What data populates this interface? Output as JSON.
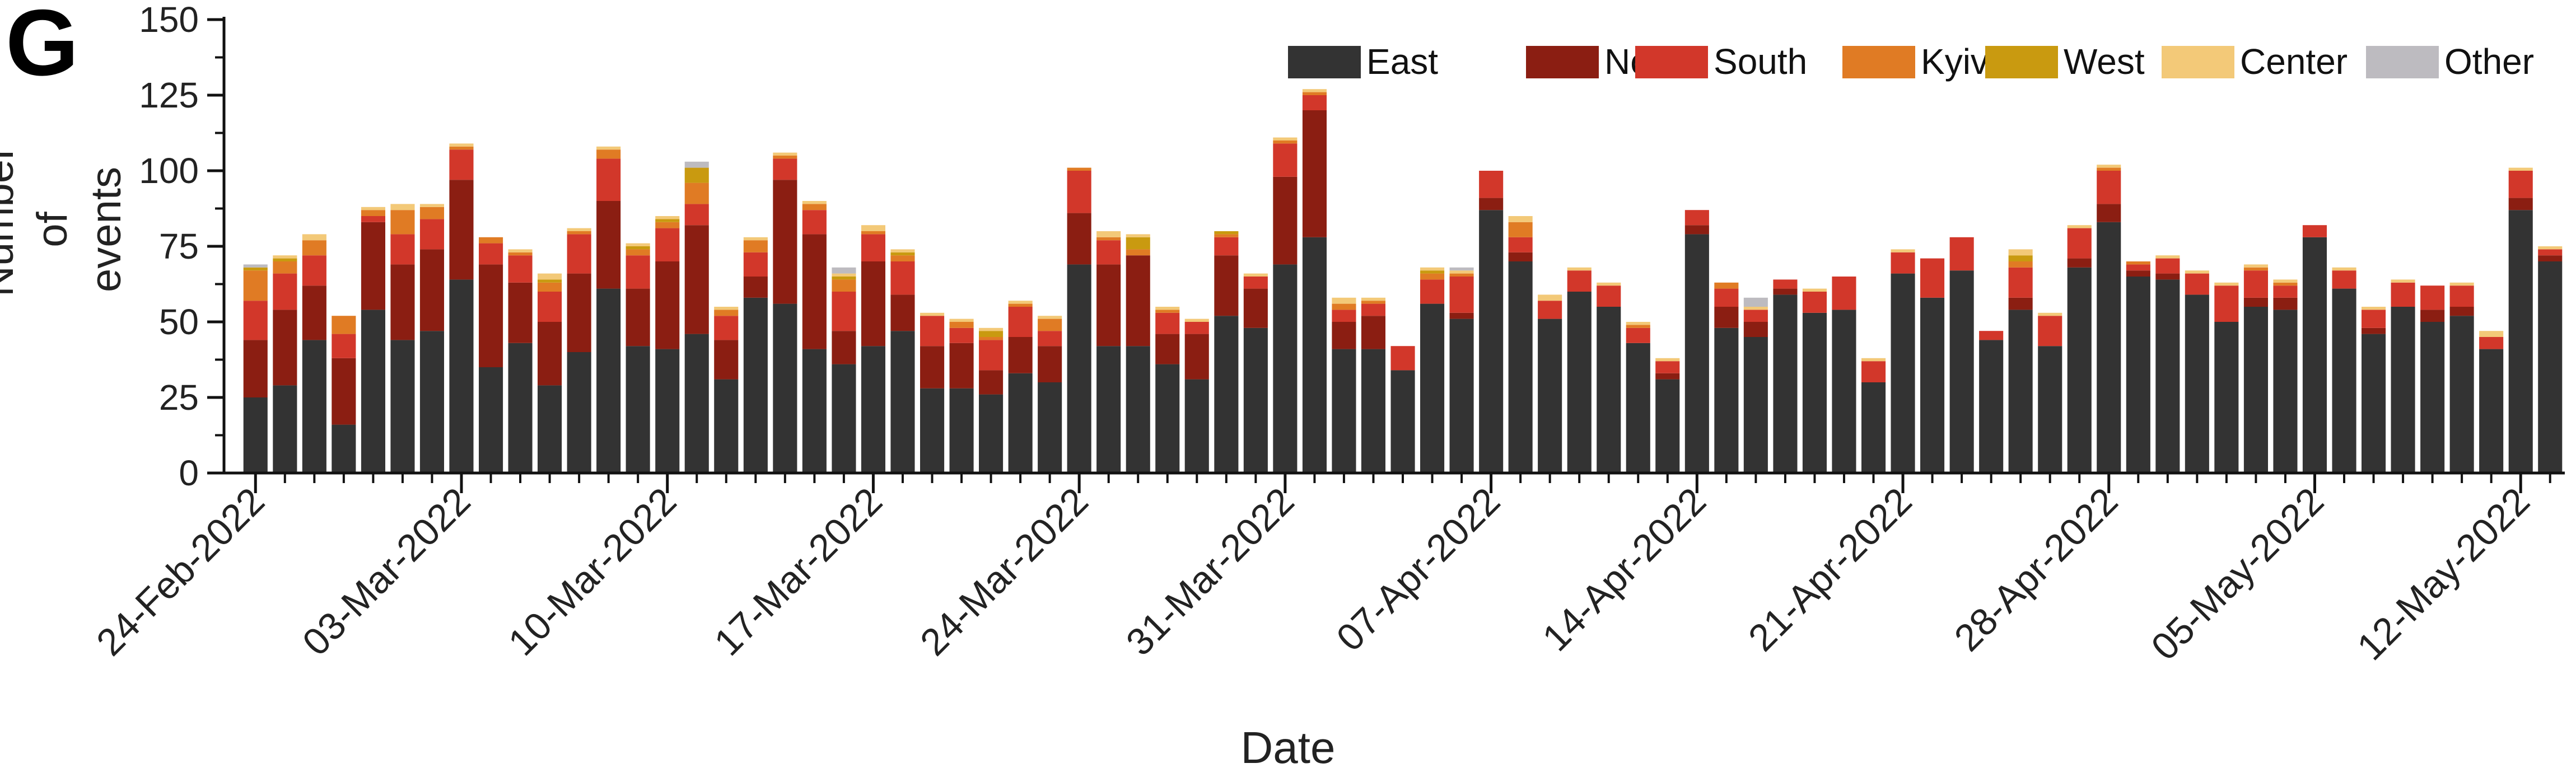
{
  "panel_label": "G",
  "chart_data": {
    "type": "bar",
    "stacked": true,
    "xlabel": "Date",
    "ylabel_lines": [
      "Number of",
      "events"
    ],
    "ylim": [
      0,
      150
    ],
    "yticks": [
      0,
      25,
      50,
      75,
      100,
      125,
      150
    ],
    "grid": false,
    "legend_placement": "top-right",
    "x_tick_labels": [
      "24-Feb-2022",
      "03-Mar-2022",
      "10-Mar-2022",
      "17-Mar-2022",
      "24-Mar-2022",
      "31-Mar-2022",
      "07-Apr-2022",
      "14-Apr-2022",
      "21-Apr-2022",
      "28-Apr-2022",
      "05-May-2022",
      "12-May-2022"
    ],
    "x_tick_every": 7,
    "series": [
      {
        "name": "East",
        "color": "#333333",
        "values": [
          25,
          29,
          44,
          16,
          54,
          44,
          47,
          64,
          35,
          43,
          29,
          40,
          61,
          42,
          41,
          46,
          31,
          58,
          56,
          41,
          36,
          42,
          47,
          28,
          28,
          26,
          33,
          30,
          69,
          42,
          42,
          36,
          31,
          52,
          48,
          69,
          78,
          41,
          41,
          34,
          56,
          51,
          87,
          70,
          51,
          60,
          55,
          43,
          31,
          79,
          48,
          45,
          59,
          53,
          54,
          30,
          66,
          58,
          67,
          44,
          54,
          42,
          68,
          83,
          65,
          64,
          59,
          50,
          55,
          54,
          78,
          61,
          46,
          55,
          50,
          52,
          41,
          87,
          70
        ]
      },
      {
        "name": "North",
        "color": "#8B1E12",
        "values": [
          19,
          25,
          18,
          22,
          29,
          25,
          27,
          33,
          34,
          20,
          21,
          26,
          29,
          19,
          29,
          36,
          13,
          7,
          41,
          38,
          11,
          28,
          12,
          14,
          15,
          8,
          12,
          12,
          17,
          27,
          30,
          10,
          15,
          20,
          13,
          29,
          42,
          9,
          11,
          0,
          0,
          2,
          4,
          3,
          0,
          0,
          0,
          0,
          2,
          3,
          7,
          5,
          2,
          0,
          0,
          0,
          0,
          0,
          0,
          0,
          4,
          0,
          3,
          6,
          2,
          2,
          0,
          0,
          3,
          4,
          0,
          0,
          2,
          0,
          4,
          3,
          0,
          4,
          2
        ]
      },
      {
        "name": "South",
        "color": "#D2372A",
        "values": [
          13,
          12,
          10,
          8,
          2,
          10,
          10,
          10,
          7,
          9,
          10,
          13,
          14,
          11,
          11,
          7,
          8,
          8,
          7,
          8,
          13,
          9,
          11,
          10,
          5,
          10,
          10,
          5,
          14,
          8,
          0,
          7,
          4,
          6,
          4,
          11,
          5,
          4,
          4,
          8,
          8,
          12,
          9,
          5,
          6,
          7,
          7,
          5,
          4,
          5,
          6,
          4,
          3,
          7,
          11,
          7,
          7,
          13,
          11,
          3,
          10,
          10,
          10,
          11,
          2,
          5,
          7,
          12,
          9,
          4,
          4,
          6,
          6,
          8,
          8,
          7,
          4,
          9,
          2
        ]
      },
      {
        "name": "Kyiv",
        "color": "#E07B24",
        "values": [
          10,
          4,
          5,
          6,
          2,
          8,
          4,
          1,
          2,
          1,
          3,
          1,
          3,
          2,
          2,
          7,
          2,
          4,
          1,
          2,
          4,
          1,
          2,
          0,
          2,
          1,
          1,
          4,
          1,
          1,
          2,
          1,
          0,
          1,
          0,
          1,
          1,
          2,
          1,
          0,
          2,
          1,
          0,
          5,
          0,
          0,
          0,
          1,
          0,
          0,
          2,
          0,
          0,
          0,
          0,
          0,
          0,
          0,
          0,
          0,
          2,
          0,
          0,
          1,
          1,
          0,
          0,
          0,
          1,
          1,
          0,
          0,
          0,
          0,
          0,
          0,
          0,
          0,
          0
        ]
      },
      {
        "name": "West",
        "color": "#C99A10",
        "values": [
          1,
          1,
          0,
          0,
          0,
          0,
          0,
          0,
          0,
          0,
          1,
          0,
          0,
          1,
          1,
          5,
          0,
          0,
          0,
          0,
          1,
          0,
          1,
          0,
          0,
          2,
          0,
          0,
          0,
          0,
          4,
          0,
          0,
          1,
          0,
          0,
          0,
          0,
          0,
          0,
          1,
          0,
          0,
          0,
          0,
          0,
          0,
          0,
          0,
          0,
          0,
          0,
          0,
          0,
          0,
          0,
          0,
          0,
          0,
          0,
          2,
          0,
          0,
          0,
          0,
          0,
          0,
          0,
          0,
          0,
          0,
          0,
          0,
          0,
          0,
          0,
          0,
          0,
          0
        ]
      },
      {
        "name": "Center",
        "color": "#F3C978",
        "values": [
          0,
          1,
          2,
          0,
          1,
          2,
          1,
          1,
          0,
          1,
          2,
          1,
          1,
          1,
          1,
          0,
          1,
          1,
          1,
          1,
          1,
          2,
          1,
          1,
          1,
          1,
          1,
          1,
          0,
          2,
          1,
          1,
          1,
          0,
          1,
          1,
          1,
          2,
          1,
          0,
          1,
          1,
          0,
          2,
          2,
          1,
          1,
          1,
          1,
          0,
          0,
          1,
          0,
          1,
          0,
          1,
          1,
          0,
          0,
          0,
          2,
          1,
          1,
          1,
          0,
          1,
          1,
          1,
          1,
          1,
          0,
          1,
          1,
          1,
          0,
          1,
          2,
          1,
          1
        ]
      },
      {
        "name": "Other",
        "color": "#BDBBC0",
        "values": [
          1,
          0,
          0,
          0,
          0,
          0,
          0,
          0,
          0,
          0,
          0,
          0,
          0,
          0,
          0,
          2,
          0,
          0,
          0,
          0,
          2,
          0,
          0,
          0,
          0,
          0,
          0,
          0,
          0,
          0,
          0,
          0,
          0,
          0,
          0,
          0,
          0,
          0,
          0,
          0,
          0,
          1,
          0,
          0,
          0,
          0,
          0,
          0,
          0,
          0,
          0,
          3,
          0,
          0,
          0,
          0,
          0,
          0,
          0,
          0,
          0,
          0,
          0,
          0,
          0,
          0,
          0,
          0,
          0,
          0,
          0,
          0,
          0,
          0,
          0,
          0,
          0,
          0,
          0
        ]
      }
    ]
  }
}
